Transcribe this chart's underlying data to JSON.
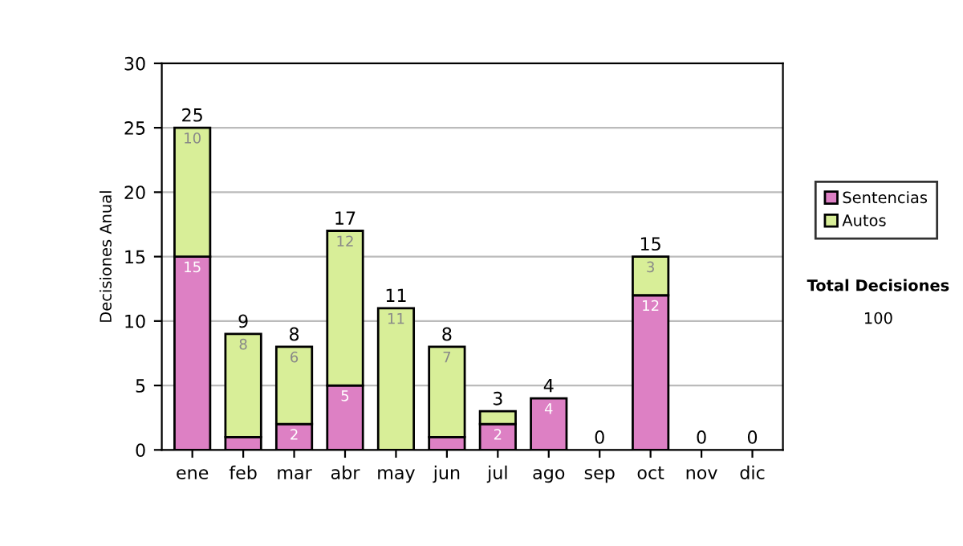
{
  "chart_data": {
    "type": "bar",
    "stacked": true,
    "ylabel": "Decisiones Anual",
    "categories": [
      "ene",
      "feb",
      "mar",
      "abr",
      "may",
      "jun",
      "jul",
      "ago",
      "sep",
      "oct",
      "nov",
      "dic"
    ],
    "series": [
      {
        "name": "Sentencias",
        "color": "#dd80c4",
        "values": [
          15,
          1,
          2,
          5,
          0,
          1,
          2,
          4,
          0,
          12,
          0,
          0
        ],
        "value_labels": [
          "15",
          null,
          "2",
          "5",
          null,
          null,
          "2",
          "4",
          null,
          "12",
          null,
          null
        ]
      },
      {
        "name": "Autos",
        "color": "#d8ee98",
        "values": [
          10,
          8,
          6,
          12,
          11,
          7,
          1,
          0,
          0,
          3,
          0,
          0
        ],
        "value_labels": [
          "10",
          "8",
          "6",
          "12",
          "11",
          "7",
          null,
          null,
          null,
          "3",
          null,
          null
        ]
      }
    ],
    "totals": [
      "25",
      "9",
      "8",
      "17",
      "11",
      "8",
      "3",
      "4",
      "0",
      "15",
      "0",
      "0"
    ],
    "ylim": [
      0,
      30
    ],
    "yticks": [
      0,
      5,
      10,
      15,
      20,
      25,
      30
    ],
    "grid": "y",
    "legend": "right",
    "annotations": [
      "Total Decisiones",
      "100"
    ]
  }
}
